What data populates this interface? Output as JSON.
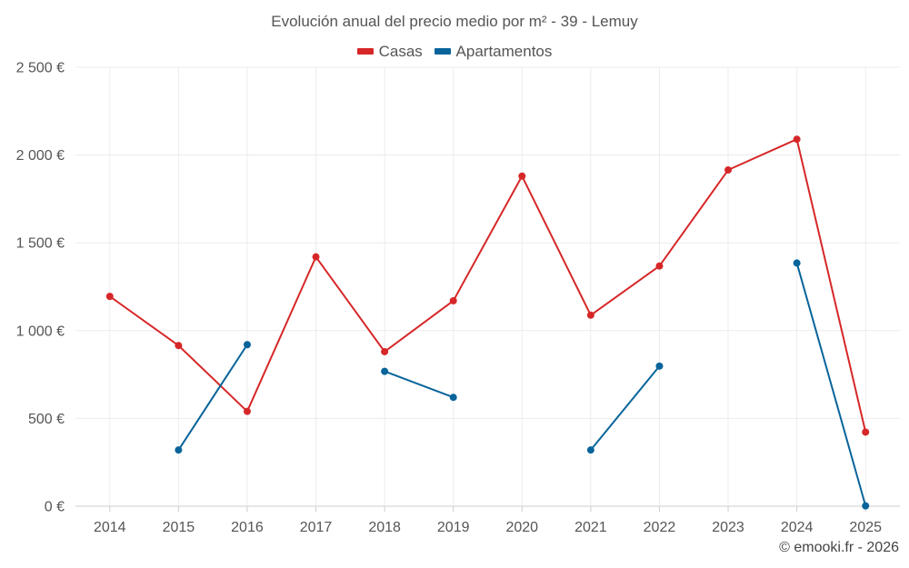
{
  "chart_data": {
    "type": "line",
    "title": "Evolución anual del precio medio por m² - 39 - Lemuy",
    "categories": [
      "2014",
      "2015",
      "2016",
      "2017",
      "2018",
      "2019",
      "2020",
      "2021",
      "2022",
      "2023",
      "2024",
      "2025"
    ],
    "series": [
      {
        "name": "Casas",
        "color": "#d62728",
        "values": [
          1195,
          915,
          540,
          1420,
          880,
          1170,
          1880,
          1088,
          1368,
          1915,
          2090,
          422
        ]
      },
      {
        "name": "Apartamentos",
        "color": "#08649b",
        "values": [
          null,
          320,
          920,
          null,
          768,
          620,
          null,
          320,
          798,
          null,
          1385,
          2
        ]
      }
    ],
    "ylim": [
      0,
      2500
    ],
    "yticks": [
      0,
      500,
      1000,
      1500,
      2000,
      2500
    ],
    "ytick_labels": [
      "0 €",
      "500 €",
      "1 000 €",
      "1 500 €",
      "2 000 €",
      "2 500 €"
    ],
    "grid": true,
    "legend_position": "top-center",
    "xlabel": "",
    "ylabel": ""
  },
  "credit": "© emooki.fr - 2026"
}
